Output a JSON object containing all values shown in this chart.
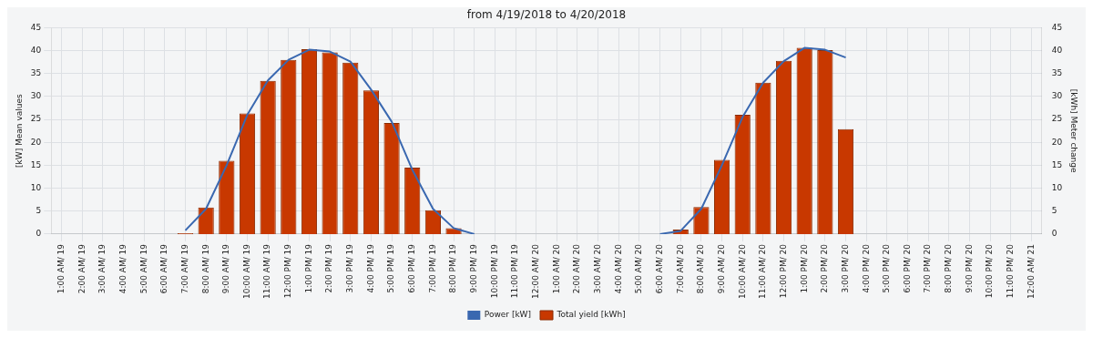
{
  "chart_data": {
    "type": "bar",
    "title": "from 4/19/2018 to 4/20/2018",
    "ylabel": "[kW] Mean values",
    "y2label": "[kWh] Meter change",
    "categories": [
      "1:00 AM/ 19",
      "2:00 AM/ 19",
      "3:00 AM/ 19",
      "4:00 AM/ 19",
      "5:00 AM/ 19",
      "6:00 AM/ 19",
      "7:00 AM/ 19",
      "8:00 AM/ 19",
      "9:00 AM/ 19",
      "10:00 AM/ 19",
      "11:00 AM/ 19",
      "12:00 PM/ 19",
      "1:00 PM/ 19",
      "2:00 PM/ 19",
      "3:00 PM/ 19",
      "4:00 PM/ 19",
      "5:00 PM/ 19",
      "6:00 PM/ 19",
      "7:00 PM/ 19",
      "8:00 PM/ 19",
      "9:00 PM/ 19",
      "10:00 PM/ 19",
      "11:00 PM/ 19",
      "12:00 AM/ 20",
      "1:00 AM/ 20",
      "2:00 AM/ 20",
      "3:00 AM/ 20",
      "4:00 AM/ 20",
      "5:00 AM/ 20",
      "6:00 AM/ 20",
      "7:00 AM/ 20",
      "8:00 AM/ 20",
      "9:00 AM/ 20",
      "10:00 AM/ 20",
      "11:00 AM/ 20",
      "12:00 PM/ 20",
      "1:00 PM/ 20",
      "2:00 PM/ 20",
      "3:00 PM/ 20",
      "4:00 PM/ 20",
      "5:00 PM/ 20",
      "6:00 PM/ 20",
      "7:00 PM/ 20",
      "8:00 PM/ 20",
      "9:00 PM/ 20",
      "10:00 PM/ 20",
      "11:00 PM/ 20",
      "12:00 AM/ 21"
    ],
    "series": [
      {
        "name": "Power [kW]",
        "type": "line",
        "axis": "y",
        "color": "#3a68b0",
        "values": [
          null,
          null,
          null,
          null,
          null,
          null,
          0.8,
          5.5,
          15,
          26,
          33.5,
          38,
          40.2,
          39.8,
          37.6,
          31.5,
          24.5,
          14,
          5.5,
          1.3,
          0,
          null,
          null,
          null,
          null,
          null,
          null,
          null,
          null,
          0,
          0.7,
          5.5,
          15,
          25.5,
          33,
          37.7,
          40.6,
          40.2,
          38.5,
          null,
          null,
          null,
          null,
          null,
          null,
          null,
          null,
          null
        ]
      },
      {
        "name": "Total yield [kWh]",
        "axis": "y2",
        "color": "#c83800",
        "values": [
          null,
          null,
          null,
          null,
          null,
          null,
          0.2,
          5.8,
          16,
          26.3,
          33.4,
          38,
          40.3,
          39.6,
          37.4,
          31.3,
          24.2,
          14.5,
          5.2,
          1.3,
          null,
          null,
          null,
          null,
          null,
          null,
          null,
          null,
          null,
          null,
          1,
          5.9,
          16.2,
          26,
          33,
          37.8,
          40.6,
          40.1,
          22.9,
          null,
          null,
          null,
          null,
          null,
          null,
          null,
          null,
          null
        ]
      }
    ],
    "ylim": [
      0,
      45
    ],
    "yticks": [
      0,
      5,
      10,
      15,
      20,
      25,
      30,
      35,
      40,
      45
    ],
    "y2lim": [
      0,
      45
    ],
    "y2ticks": [
      0,
      5,
      10,
      15,
      20,
      25,
      30,
      35,
      40,
      45
    ],
    "grid": true,
    "legend": "bottom",
    "marker": "none",
    "line_style": "solid"
  }
}
